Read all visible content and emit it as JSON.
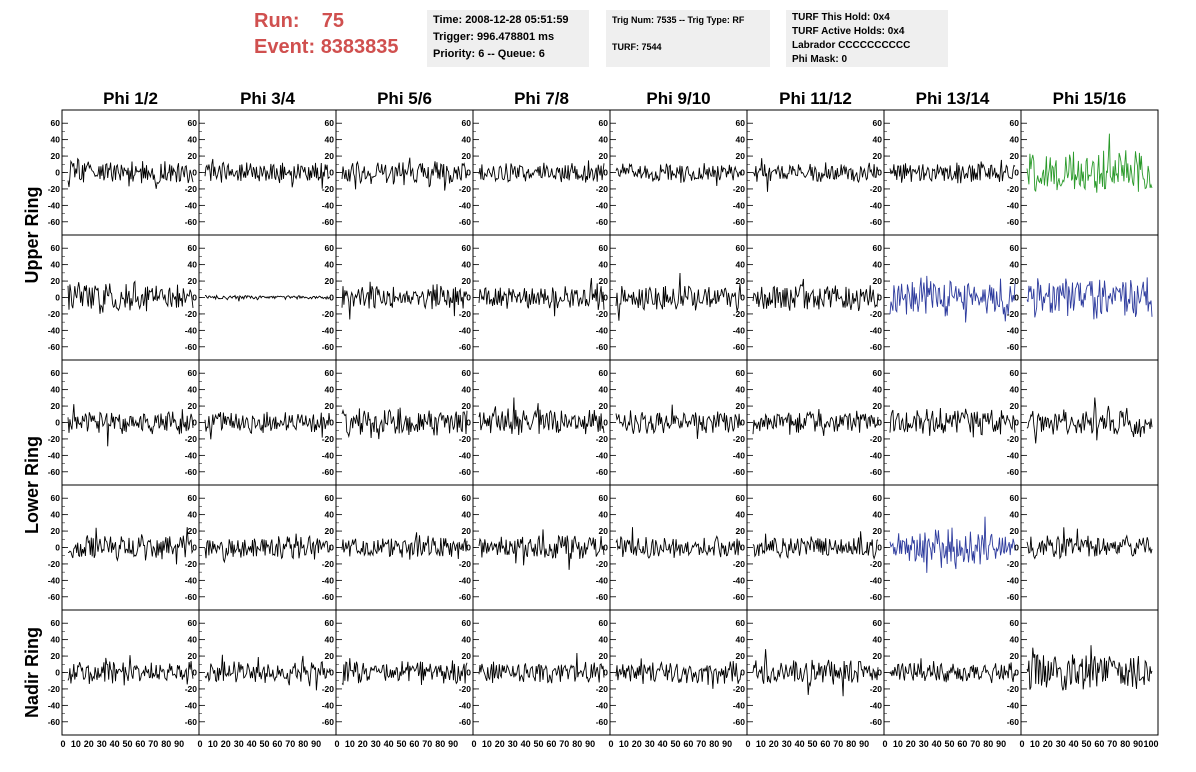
{
  "header": {
    "run_label": "Run:",
    "run_value": "75",
    "event_label": "Event:",
    "event_value": "8383835"
  },
  "info": {
    "time": "Time: 2008-12-28 05:51:59",
    "trigger": "Trigger: 996.478801 ms",
    "priority": "Priority: 6 -- Queue: 6",
    "trig_num": "Trig Num: 7535 -- Trig Type: RF",
    "turf": "TURF: 7544",
    "turf_this_hold": "TURF This Hold: 0x4",
    "turf_active_holds": "TURF Active Holds: 0x4",
    "labrador": "Labrador CCCCCCCCCC",
    "phi_mask": "Phi Mask: 0"
  },
  "chart_data": {
    "type": "line",
    "columns": [
      "Phi 1/2",
      "Phi 3/4",
      "Phi 5/6",
      "Phi 7/8",
      "Phi 9/10",
      "Phi 11/12",
      "Phi 13/14",
      "Phi 15/16"
    ],
    "row_groups": [
      {
        "label": "Upper Ring",
        "rows": [
          0,
          1
        ]
      },
      {
        "label": "Lower Ring",
        "rows": [
          2,
          3
        ]
      },
      {
        "label": "Nadir Ring",
        "rows": [
          4
        ]
      }
    ],
    "ylim": [
      -70,
      70
    ],
    "xlim": [
      0,
      100
    ],
    "y_ticks": [
      -60,
      -40,
      -20,
      0,
      20,
      40,
      60
    ],
    "x_tick_labels": [
      "0",
      "10",
      "20",
      "30",
      "40",
      "50",
      "60",
      "70",
      "80",
      "90",
      "100"
    ],
    "series_colors": {
      "normal": "#000000",
      "green": "#2a9a2a",
      "blue": "#2e3c9e"
    },
    "panels": [
      [
        {
          "color": "normal",
          "amp": 12,
          "seed": 11
        },
        {
          "color": "normal",
          "amp": 11,
          "seed": 12
        },
        {
          "color": "normal",
          "amp": 13,
          "seed": 13
        },
        {
          "color": "normal",
          "amp": 10,
          "seed": 14
        },
        {
          "color": "normal",
          "amp": 10,
          "seed": 15
        },
        {
          "color": "normal",
          "amp": 10,
          "seed": 16
        },
        {
          "color": "normal",
          "amp": 12,
          "seed": 17
        },
        {
          "color": "green",
          "amp": 22,
          "seed": 18
        }
      ],
      [
        {
          "color": "normal",
          "amp": 17,
          "seed": 21
        },
        {
          "color": "normal",
          "amp": 2,
          "seed": 22
        },
        {
          "color": "normal",
          "amp": 13,
          "seed": 23
        },
        {
          "color": "normal",
          "amp": 12,
          "seed": 24
        },
        {
          "color": "normal",
          "amp": 14,
          "seed": 25
        },
        {
          "color": "normal",
          "amp": 13,
          "seed": 26
        },
        {
          "color": "blue",
          "amp": 20,
          "seed": 27
        },
        {
          "color": "blue",
          "amp": 20,
          "seed": 28
        }
      ],
      [
        {
          "color": "normal",
          "amp": 13,
          "seed": 31
        },
        {
          "color": "normal",
          "amp": 11,
          "seed": 32
        },
        {
          "color": "normal",
          "amp": 15,
          "seed": 33
        },
        {
          "color": "normal",
          "amp": 13,
          "seed": 34
        },
        {
          "color": "normal",
          "amp": 12,
          "seed": 35
        },
        {
          "color": "normal",
          "amp": 11,
          "seed": 36
        },
        {
          "color": "normal",
          "amp": 14,
          "seed": 37
        },
        {
          "color": "normal",
          "amp": 15,
          "seed": 38
        }
      ],
      [
        {
          "color": "normal",
          "amp": 13,
          "seed": 41
        },
        {
          "color": "normal",
          "amp": 12,
          "seed": 42
        },
        {
          "color": "normal",
          "amp": 11,
          "seed": 43
        },
        {
          "color": "normal",
          "amp": 12,
          "seed": 44
        },
        {
          "color": "normal",
          "amp": 11,
          "seed": 45
        },
        {
          "color": "normal",
          "amp": 11,
          "seed": 46
        },
        {
          "color": "blue",
          "amp": 15,
          "seed": 47
        },
        {
          "color": "normal",
          "amp": 12,
          "seed": 48
        }
      ],
      [
        {
          "color": "normal",
          "amp": 12,
          "seed": 51
        },
        {
          "color": "normal",
          "amp": 11,
          "seed": 52
        },
        {
          "color": "normal",
          "amp": 12,
          "seed": 53
        },
        {
          "color": "normal",
          "amp": 12,
          "seed": 54
        },
        {
          "color": "normal",
          "amp": 12,
          "seed": 55
        },
        {
          "color": "normal",
          "amp": 13,
          "seed": 56
        },
        {
          "color": "normal",
          "amp": 11,
          "seed": 57
        },
        {
          "color": "normal",
          "amp": 18,
          "seed": 58
        }
      ]
    ]
  }
}
